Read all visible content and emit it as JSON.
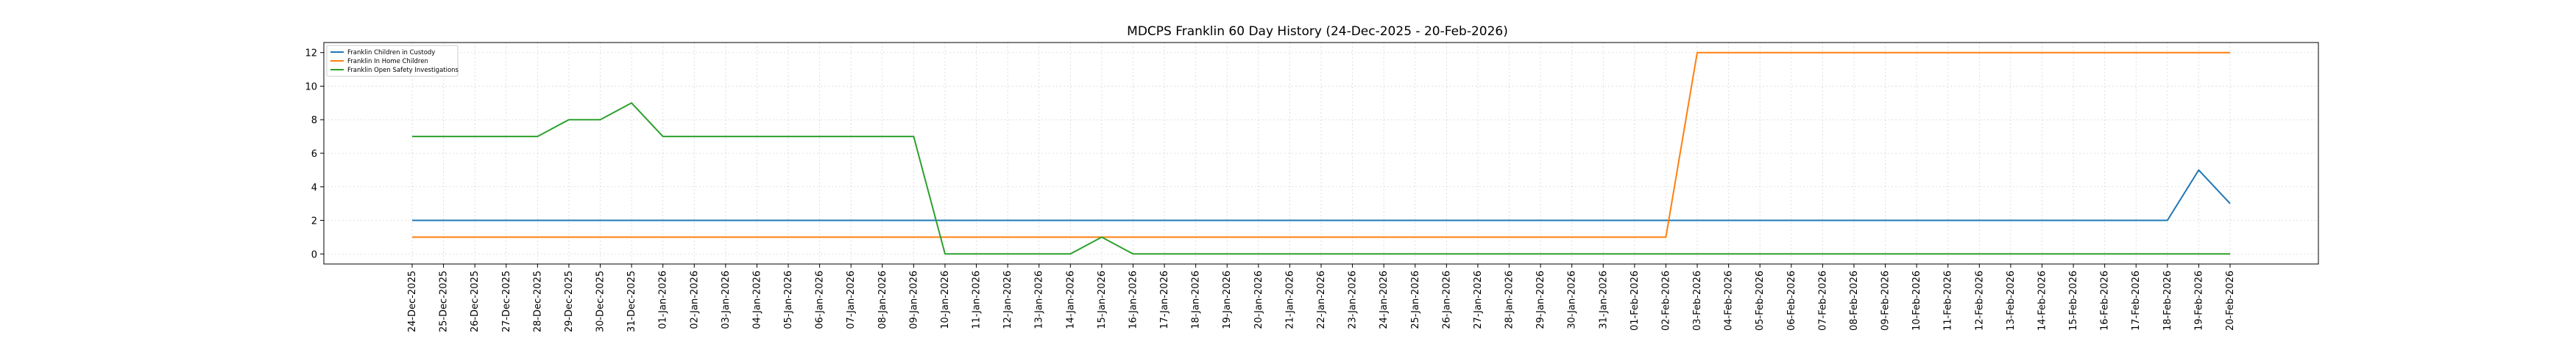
{
  "chart_data": {
    "type": "line",
    "title": "MDCPS Franklin 60 Day History (24-Dec-2025 - 20-Feb-2026)",
    "xlabel": "",
    "ylabel": "",
    "ylim": [
      -0.6,
      12.6
    ],
    "yticks": [
      0,
      2,
      4,
      6,
      8,
      10,
      12
    ],
    "grid": true,
    "legend_position": "top-left",
    "categories": [
      "24-Dec-2025",
      "25-Dec-2025",
      "26-Dec-2025",
      "27-Dec-2025",
      "28-Dec-2025",
      "29-Dec-2025",
      "30-Dec-2025",
      "31-Dec-2025",
      "01-Jan-2026",
      "02-Jan-2026",
      "03-Jan-2026",
      "04-Jan-2026",
      "05-Jan-2026",
      "06-Jan-2026",
      "07-Jan-2026",
      "08-Jan-2026",
      "09-Jan-2026",
      "10-Jan-2026",
      "11-Jan-2026",
      "12-Jan-2026",
      "13-Jan-2026",
      "14-Jan-2026",
      "15-Jan-2026",
      "16-Jan-2026",
      "17-Jan-2026",
      "18-Jan-2026",
      "19-Jan-2026",
      "20-Jan-2026",
      "21-Jan-2026",
      "22-Jan-2026",
      "23-Jan-2026",
      "24-Jan-2026",
      "25-Jan-2026",
      "26-Jan-2026",
      "27-Jan-2026",
      "28-Jan-2026",
      "29-Jan-2026",
      "30-Jan-2026",
      "31-Jan-2026",
      "01-Feb-2026",
      "02-Feb-2026",
      "03-Feb-2026",
      "04-Feb-2026",
      "05-Feb-2026",
      "06-Feb-2026",
      "07-Feb-2026",
      "08-Feb-2026",
      "09-Feb-2026",
      "10-Feb-2026",
      "11-Feb-2026",
      "12-Feb-2026",
      "13-Feb-2026",
      "14-Feb-2026",
      "15-Feb-2026",
      "16-Feb-2026",
      "17-Feb-2026",
      "18-Feb-2026",
      "19-Feb-2026",
      "20-Feb-2026"
    ],
    "series": [
      {
        "name": "Franklin Children in Custody",
        "color": "#1f77b4",
        "values": [
          2,
          2,
          2,
          2,
          2,
          2,
          2,
          2,
          2,
          2,
          2,
          2,
          2,
          2,
          2,
          2,
          2,
          2,
          2,
          2,
          2,
          2,
          2,
          2,
          2,
          2,
          2,
          2,
          2,
          2,
          2,
          2,
          2,
          2,
          2,
          2,
          2,
          2,
          2,
          2,
          2,
          2,
          2,
          2,
          2,
          2,
          2,
          2,
          2,
          2,
          2,
          2,
          2,
          2,
          2,
          2,
          2,
          5,
          3
        ]
      },
      {
        "name": "Franklin In Home Children",
        "color": "#ff7f0e",
        "values": [
          1,
          1,
          1,
          1,
          1,
          1,
          1,
          1,
          1,
          1,
          1,
          1,
          1,
          1,
          1,
          1,
          1,
          1,
          1,
          1,
          1,
          1,
          1,
          1,
          1,
          1,
          1,
          1,
          1,
          1,
          1,
          1,
          1,
          1,
          1,
          1,
          1,
          1,
          1,
          1,
          1,
          12,
          12,
          12,
          12,
          12,
          12,
          12,
          12,
          12,
          12,
          12,
          12,
          12,
          12,
          12,
          12,
          12,
          12
        ]
      },
      {
        "name": "Franklin Open Safety Investigations",
        "color": "#2ca02c",
        "values": [
          7,
          7,
          7,
          7,
          7,
          8,
          8,
          9,
          7,
          7,
          7,
          7,
          7,
          7,
          7,
          7,
          7,
          0,
          0,
          0,
          0,
          0,
          1,
          0,
          0,
          0,
          0,
          0,
          0,
          0,
          0,
          0,
          0,
          0,
          0,
          0,
          0,
          0,
          0,
          0,
          0,
          0,
          0,
          0,
          0,
          0,
          0,
          0,
          0,
          0,
          0,
          0,
          0,
          0,
          0,
          0,
          0,
          0,
          0
        ]
      }
    ]
  }
}
